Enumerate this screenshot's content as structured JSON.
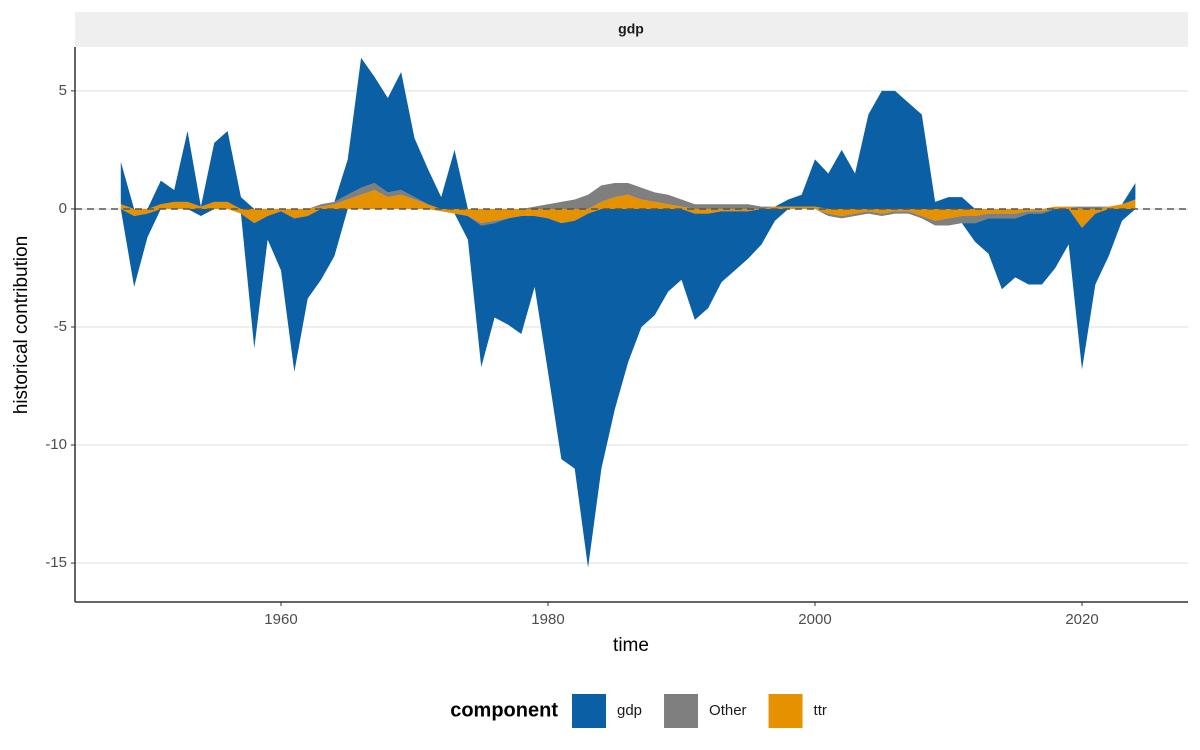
{
  "chart_data": {
    "type": "area",
    "facet": "gdp",
    "x_label": "time",
    "y_label": "historical contribution",
    "legend_title": "component",
    "legend_position": "bottom",
    "stacked": true,
    "grid": true,
    "hline": 0,
    "xlim": [
      1944.57,
      2027.94
    ],
    "ylim": [
      -16.65,
      6.86
    ],
    "xticks": [
      1960,
      1980,
      2000,
      2020
    ],
    "yticks": [
      -15,
      -10,
      -5,
      0,
      5
    ],
    "x": [
      1948,
      1949,
      1950,
      1951,
      1952,
      1953,
      1954,
      1955,
      1956,
      1957,
      1958,
      1959,
      1960,
      1961,
      1962,
      1963,
      1964,
      1965,
      1966,
      1967,
      1968,
      1969,
      1970,
      1971,
      1972,
      1973,
      1974,
      1975,
      1976,
      1977,
      1978,
      1979,
      1980,
      1981,
      1982,
      1983,
      1984,
      1985,
      1986,
      1987,
      1988,
      1989,
      1990,
      1991,
      1992,
      1993,
      1994,
      1995,
      1996,
      1997,
      1998,
      1999,
      2000,
      2001,
      2002,
      2003,
      2004,
      2005,
      2006,
      2007,
      2008,
      2009,
      2010,
      2011,
      2012,
      2013,
      2014,
      2015,
      2016,
      2017,
      2018,
      2019,
      2020,
      2021,
      2022,
      2023,
      2024
    ],
    "series": [
      {
        "name": "gdp",
        "color": "#0b5fa5",
        "values": [
          1.8,
          -3,
          -1,
          1,
          0.5,
          3,
          -0.3,
          2.5,
          3,
          0.5,
          -5.3,
          -1,
          -2.5,
          -6.5,
          -3.5,
          -3,
          -2,
          1.5,
          5.5,
          4.5,
          4,
          5,
          2.5,
          1.5,
          0.5,
          2.5,
          -1,
          -6,
          -4,
          -4.5,
          -5,
          -3,
          -6.5,
          -10,
          -10.5,
          -15,
          -11,
          -8.5,
          -6.5,
          -5,
          -4.5,
          -3.5,
          -3,
          -4.5,
          -4,
          -3,
          -2.5,
          -2,
          -1.5,
          -0.5,
          0.3,
          0.5,
          2,
          1.5,
          2.5,
          1.5,
          4,
          5,
          5,
          4.5,
          4,
          0.3,
          0.5,
          0.5,
          -0.8,
          -1.5,
          -3,
          -2.5,
          -3,
          -3,
          -2.5,
          -1.5,
          -6,
          -3,
          -2,
          -0.5,
          0.7
        ]
      },
      {
        "name": "Other",
        "color": "#7f7f7f",
        "values": [
          0,
          0,
          0,
          0,
          0,
          0,
          0,
          0,
          0,
          0,
          0,
          0,
          0,
          0,
          0,
          0.1,
          0.1,
          0.2,
          0.3,
          0.3,
          0.2,
          0.2,
          0.1,
          0,
          0,
          0,
          0,
          -0.1,
          -0.1,
          0,
          0,
          0.1,
          0.2,
          0.3,
          0.4,
          0.6,
          0.7,
          0.6,
          0.5,
          0.5,
          0.4,
          0.4,
          0.3,
          0.2,
          0.2,
          0.2,
          0.2,
          0.2,
          0.1,
          0,
          0,
          0,
          0,
          -0.1,
          -0.1,
          -0.1,
          -0.1,
          -0.1,
          -0.1,
          -0.1,
          -0.1,
          -0.2,
          -0.3,
          -0.3,
          -0.3,
          -0.2,
          -0.2,
          -0.2,
          -0.1,
          -0.1,
          0,
          0,
          0.1,
          0.1,
          0,
          0,
          0
        ]
      },
      {
        "name": "ttr",
        "color": "#e69100",
        "values": [
          0.2,
          -0.3,
          -0.2,
          0.2,
          0.3,
          0.3,
          0.1,
          0.3,
          0.3,
          -0.2,
          -0.6,
          -0.3,
          -0.1,
          -0.4,
          -0.3,
          0.1,
          0.2,
          0.4,
          0.6,
          0.8,
          0.5,
          0.6,
          0.4,
          0.2,
          -0.1,
          -0.2,
          -0.3,
          -0.6,
          -0.5,
          -0.4,
          -0.3,
          -0.3,
          -0.4,
          -0.6,
          -0.5,
          -0.2,
          0.3,
          0.5,
          0.6,
          0.4,
          0.3,
          0.2,
          0.1,
          -0.2,
          -0.2,
          -0.1,
          -0.1,
          -0.1,
          0,
          0.1,
          0.1,
          0.1,
          0.1,
          -0.2,
          -0.3,
          -0.2,
          -0.1,
          -0.2,
          -0.1,
          -0.1,
          -0.3,
          -0.5,
          -0.4,
          -0.3,
          -0.3,
          -0.2,
          -0.2,
          -0.2,
          -0.1,
          -0.1,
          0.1,
          0.1,
          -0.8,
          -0.2,
          0.1,
          0.2,
          0.4
        ]
      }
    ]
  }
}
